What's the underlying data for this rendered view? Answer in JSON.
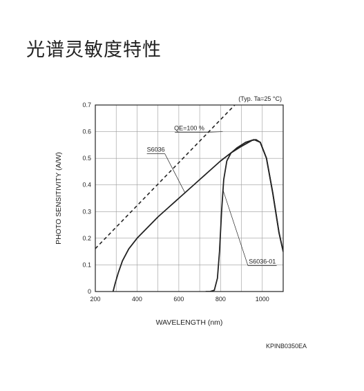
{
  "page_title": "光谱灵敏度特性",
  "figure_code": "KPINB0350EA",
  "chart_data": {
    "type": "line",
    "xlabel": "WAVELENGTH (nm)",
    "ylabel": "PHOTO SENSITIVITY (A/W)",
    "xlim": [
      200,
      1100
    ],
    "ylim": [
      0,
      0.7
    ],
    "x_ticks": [
      200,
      400,
      600,
      800,
      1000
    ],
    "x_tick_labels": [
      "200",
      "400",
      "600",
      "800",
      "1000"
    ],
    "y_ticks": [
      0,
      0.1,
      0.2,
      0.3,
      0.4,
      0.5,
      0.6,
      0.7
    ],
    "y_tick_labels": [
      "0",
      "0.1",
      "0.2",
      "0.3",
      "0.4",
      "0.5",
      "0.6",
      "0.7"
    ],
    "grid": true,
    "condition_note": "(Typ. Ta=25 °C)",
    "series": [
      {
        "name": "QE=100 %",
        "style": "dashed",
        "color": "#222222",
        "points": [
          [
            200,
            0.161
          ],
          [
            1050,
            0.847
          ]
        ]
      },
      {
        "name": "S6036",
        "style": "solid",
        "color": "#222222",
        "points": [
          [
            285,
            0
          ],
          [
            295,
            0.03
          ],
          [
            310,
            0.07
          ],
          [
            330,
            0.115
          ],
          [
            360,
            0.16
          ],
          [
            400,
            0.2
          ],
          [
            450,
            0.24
          ],
          [
            500,
            0.28
          ],
          [
            550,
            0.315
          ],
          [
            600,
            0.35
          ],
          [
            650,
            0.385
          ],
          [
            700,
            0.42
          ],
          [
            750,
            0.455
          ],
          [
            800,
            0.49
          ],
          [
            850,
            0.52
          ],
          [
            900,
            0.545
          ],
          [
            950,
            0.567
          ],
          [
            970,
            0.57
          ],
          [
            990,
            0.56
          ],
          [
            1020,
            0.5
          ],
          [
            1050,
            0.37
          ],
          [
            1080,
            0.22
          ],
          [
            1100,
            0.15
          ]
        ]
      },
      {
        "name": "S6036-01",
        "style": "solid",
        "color": "#222222",
        "points": [
          [
            730,
            0
          ],
          [
            750,
            0
          ],
          [
            770,
            0.005
          ],
          [
            785,
            0.05
          ],
          [
            795,
            0.15
          ],
          [
            805,
            0.3
          ],
          [
            815,
            0.42
          ],
          [
            830,
            0.49
          ],
          [
            850,
            0.52
          ],
          [
            880,
            0.54
          ],
          [
            920,
            0.56
          ],
          [
            960,
            0.57
          ],
          [
            990,
            0.56
          ],
          [
            1020,
            0.5
          ],
          [
            1050,
            0.37
          ],
          [
            1080,
            0.22
          ],
          [
            1100,
            0.15
          ]
        ]
      }
    ],
    "annotations": [
      {
        "label": "QE=100 %",
        "series": "QE=100 %",
        "at": [
          810,
          0.6
        ],
        "text_at": [
          650,
          0.605
        ]
      },
      {
        "label": "S6036",
        "series": "S6036",
        "at": [
          630,
          0.37
        ],
        "text_at": [
          490,
          0.525
        ]
      },
      {
        "label": "S6036-01",
        "series": "S6036-01",
        "at": [
          812,
          0.38
        ],
        "text_at": [
          1000,
          0.105
        ]
      }
    ]
  }
}
